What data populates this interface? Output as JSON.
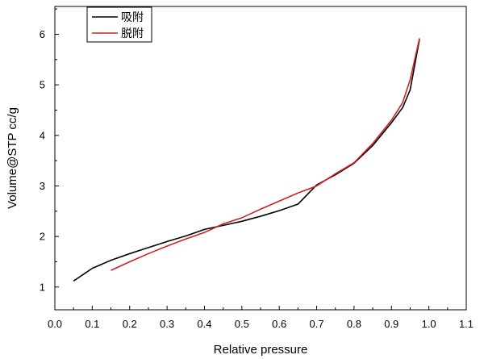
{
  "chart_data": {
    "type": "line",
    "xlabel": "Relative pressure",
    "ylabel": "Volume@STP cc/g",
    "xlim": [
      0.0,
      1.1
    ],
    "ylim": [
      0.55,
      6.55
    ],
    "xticks": [
      "0.0",
      "0.1",
      "0.2",
      "0.3",
      "0.4",
      "0.5",
      "0.6",
      "0.7",
      "0.8",
      "0.9",
      "1.0",
      "1.1"
    ],
    "yticks": [
      "1",
      "2",
      "3",
      "4",
      "5",
      "6"
    ],
    "grid": false,
    "legend_position": "top-left",
    "series": [
      {
        "name": "吸附",
        "color": "#000000",
        "x": [
          0.05,
          0.1,
          0.15,
          0.2,
          0.25,
          0.3,
          0.35,
          0.4,
          0.45,
          0.5,
          0.55,
          0.6,
          0.65,
          0.7,
          0.75,
          0.8,
          0.85,
          0.9,
          0.93,
          0.95,
          0.975
        ],
        "y": [
          1.12,
          1.37,
          1.53,
          1.66,
          1.78,
          1.9,
          2.01,
          2.14,
          2.22,
          2.3,
          2.4,
          2.51,
          2.64,
          3.02,
          3.22,
          3.45,
          3.8,
          4.25,
          4.55,
          4.9,
          5.9
        ]
      },
      {
        "name": "脱附",
        "color": "#cc2222",
        "x": [
          0.15,
          0.2,
          0.25,
          0.3,
          0.35,
          0.4,
          0.45,
          0.5,
          0.55,
          0.6,
          0.65,
          0.7,
          0.75,
          0.8,
          0.85,
          0.9,
          0.93,
          0.95,
          0.975
        ],
        "y": [
          1.33,
          1.5,
          1.66,
          1.81,
          1.95,
          2.08,
          2.25,
          2.37,
          2.54,
          2.7,
          2.86,
          3.0,
          3.24,
          3.46,
          3.84,
          4.3,
          4.65,
          5.1,
          5.92
        ]
      }
    ]
  }
}
